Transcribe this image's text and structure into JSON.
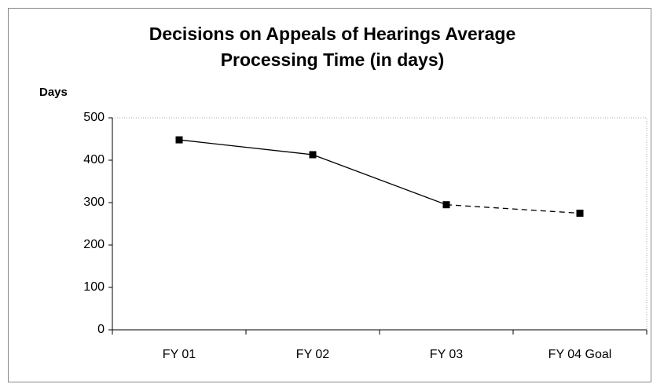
{
  "chart_data": {
    "type": "line",
    "title": [
      "Decisions on Appeals of Hearings Average",
      "Processing Time (in days)"
    ],
    "y_label": "Days",
    "categories": [
      "FY 01",
      "FY 02",
      "FY 03",
      "FY 04 Goal"
    ],
    "values": [
      448,
      413,
      295,
      275
    ],
    "color": "#000000",
    "segment_styles": [
      "solid",
      "solid",
      "dashed"
    ],
    "ylim": [
      0,
      500
    ],
    "yticks": [
      0,
      100,
      200,
      300,
      400,
      500
    ],
    "grid": false
  }
}
